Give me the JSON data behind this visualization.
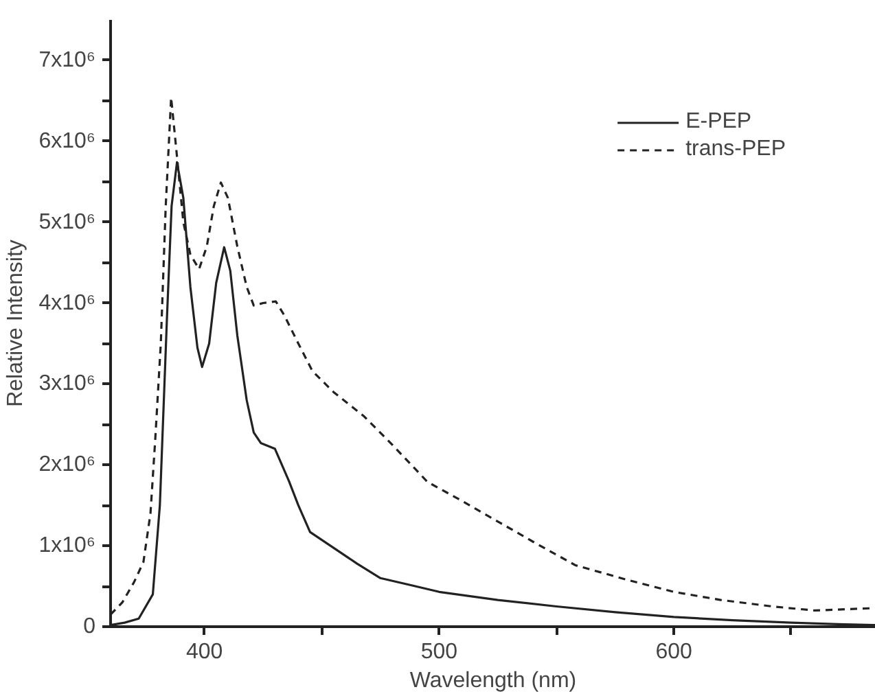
{
  "chart_data": {
    "type": "line",
    "xlabel": "Wavelength (nm)",
    "ylabel": "Relative Intensity",
    "xlim": [
      360,
      686
    ],
    "ylim": [
      0,
      7500000
    ],
    "xticks": [
      400,
      {
        "value": 450,
        "label": null
      },
      500,
      {
        "value": 550,
        "label": null
      },
      600,
      {
        "value": 650,
        "label": null
      }
    ],
    "yticks": [
      {
        "value": 0,
        "label": "0"
      },
      {
        "value": 500000,
        "label": null
      },
      {
        "value": 1000000,
        "label": "1x10⁶"
      },
      {
        "value": 1500000,
        "label": null
      },
      {
        "value": 2000000,
        "label": "2x10⁶"
      },
      {
        "value": 2500000,
        "label": null
      },
      {
        "value": 3000000,
        "label": "3x10⁶"
      },
      {
        "value": 3500000,
        "label": null
      },
      {
        "value": 4000000,
        "label": "4x10⁶"
      },
      {
        "value": 4500000,
        "label": null
      },
      {
        "value": 5000000,
        "label": "5x10⁶"
      },
      {
        "value": 5500000,
        "label": null
      },
      {
        "value": 6000000,
        "label": "6x10⁶"
      },
      {
        "value": 6500000,
        "label": null
      },
      {
        "value": 7000000,
        "label": "7x10⁶"
      }
    ],
    "grid": false,
    "legend": "top right",
    "marker": "none",
    "series": [
      {
        "name": "E-PEP",
        "color": "#222222",
        "line_style": "solid",
        "x": [
          360,
          366,
          372,
          378,
          381,
          384,
          386,
          388.3,
          391,
          394,
          397,
          399,
          402,
          405,
          408.4,
          411,
          414,
          418,
          421,
          424,
          430,
          436,
          440,
          445,
          453.7,
          465,
          475,
          487,
          500,
          525,
          550,
          575,
          600,
          625,
          650,
          670,
          686
        ],
        "values": [
          20000,
          50000,
          100000,
          400000,
          1500000,
          3800000,
          5200000,
          5740000,
          5300000,
          4200000,
          3450000,
          3210000,
          3500000,
          4250000,
          4690000,
          4400000,
          3600000,
          2800000,
          2400000,
          2270000,
          2200000,
          1800000,
          1500000,
          1170000,
          1000000,
          780000,
          600000,
          520000,
          430000,
          330000,
          250000,
          180000,
          120000,
          80000,
          50000,
          30000,
          20000
        ]
      },
      {
        "name": "trans-PEP",
        "color": "#222222",
        "line_style": "dashed",
        "x": [
          360,
          365,
          370,
          374,
          377,
          379,
          381.4,
          383.5,
          385.8,
          388,
          391,
          394,
          397.7,
          401,
          404,
          407,
          410,
          414,
          418,
          421,
          425,
          430.4,
          434,
          440,
          446,
          455,
          468,
          480,
          495,
          510,
          525,
          540,
          558,
          580,
          600,
          620,
          642,
          660,
          686
        ],
        "values": [
          150000,
          300000,
          550000,
          800000,
          1400000,
          2300000,
          3500000,
          5200000,
          6540000,
          5900000,
          5000000,
          4600000,
          4420000,
          4700000,
          5200000,
          5490000,
          5300000,
          4700000,
          4200000,
          3970000,
          4000000,
          4020000,
          3850000,
          3500000,
          3160000,
          2900000,
          2600000,
          2250000,
          1790000,
          1550000,
          1300000,
          1050000,
          760000,
          580000,
          430000,
          330000,
          250000,
          200000,
          230000
        ]
      }
    ]
  }
}
